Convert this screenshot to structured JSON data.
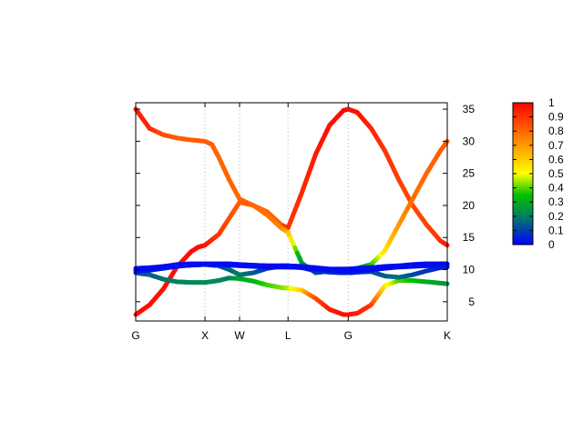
{
  "chart_data": {
    "type": "line",
    "title": "",
    "xlabel": "",
    "ylabel": "",
    "x_ticks": [
      {
        "label": "G",
        "pos": 0
      },
      {
        "label": "X",
        "pos": 1
      },
      {
        "label": "W",
        "pos": 1.5
      },
      {
        "label": "L",
        "pos": 2.2
      },
      {
        "label": "G",
        "pos": 3.07
      },
      {
        "label": "K",
        "pos": 4.5
      }
    ],
    "xlim": [
      0,
      4.5
    ],
    "ylim": [
      2,
      36
    ],
    "y_ticks": [
      5,
      10,
      15,
      20,
      25,
      30,
      35
    ],
    "y_axis_side": "right",
    "grid": "vertical dotted at high-symmetry points",
    "colorbar": {
      "min": 0,
      "max": 1,
      "ticks": [
        "0",
        "0.1",
        "0.2",
        "0.3",
        "0.4",
        "0.5",
        "0.6",
        "0.7",
        "0.8",
        "0.9",
        "1"
      ],
      "stops": [
        "#0000ff",
        "#008060",
        "#00c000",
        "#ffff00",
        "#ff8000",
        "#ff0000"
      ]
    },
    "series": [
      {
        "x": [
          0,
          0.2,
          0.4,
          0.6,
          0.8,
          1.0,
          1.1,
          1.2,
          1.35,
          1.5,
          1.7,
          1.9,
          2.1,
          2.2,
          2.4,
          2.6,
          2.8,
          3.0,
          3.07,
          3.2,
          3.4,
          3.6,
          3.8,
          4.0,
          4.2,
          4.4,
          4.5
        ],
        "y": [
          35,
          32,
          31,
          30.5,
          30.2,
          30,
          29.5,
          27.5,
          24,
          21,
          20,
          19,
          17,
          16.5,
          22,
          28,
          32.5,
          34.8,
          35,
          34.5,
          32,
          28.5,
          24,
          20,
          17,
          14.5,
          13.8
        ],
        "w": [
          0.95,
          0.93,
          0.85,
          0.82,
          0.82,
          0.82,
          0.82,
          0.8,
          0.8,
          0.8,
          0.8,
          0.8,
          0.82,
          0.9,
          0.92,
          0.95,
          0.97,
          0.98,
          0.98,
          0.97,
          0.93,
          0.9,
          0.88,
          0.86,
          0.87,
          0.9,
          0.95
        ]
      },
      {
        "x": [
          0,
          0.2,
          0.4,
          0.6,
          0.8,
          0.9,
          1.0,
          1.2,
          1.35,
          1.5,
          1.7,
          1.9,
          2.1,
          2.2,
          2.4,
          2.6,
          2.8,
          3.0,
          3.07,
          3.2,
          3.4,
          3.6,
          3.8,
          4.0,
          4.2,
          4.4,
          4.5
        ],
        "y": [
          3,
          4.5,
          7,
          10.5,
          12.8,
          13.5,
          13.8,
          15.5,
          18,
          20.5,
          20,
          18.5,
          16.5,
          15.8,
          11,
          9.5,
          9.8,
          10,
          10,
          10.2,
          10.8,
          13,
          17,
          21,
          25,
          28.5,
          30
        ],
        "w": [
          0.97,
          0.97,
          0.97,
          0.97,
          0.97,
          0.97,
          0.97,
          0.9,
          0.85,
          0.82,
          0.8,
          0.78,
          0.75,
          0.65,
          0.25,
          0.12,
          0.08,
          0.06,
          0.06,
          0.1,
          0.35,
          0.55,
          0.7,
          0.78,
          0.8,
          0.82,
          0.82
        ]
      },
      {
        "x": [
          0,
          0.2,
          0.4,
          0.6,
          0.8,
          1.0,
          1.2,
          1.35,
          1.5,
          1.7,
          1.9,
          2.1,
          2.2,
          2.4,
          2.6,
          2.8,
          3.0,
          3.07,
          3.2,
          3.4,
          3.6,
          3.8,
          4.0,
          4.2,
          4.4,
          4.5
        ],
        "y": [
          9.5,
          9.2,
          8.5,
          8.1,
          8,
          8,
          8.3,
          8.7,
          8.6,
          8.2,
          7.6,
          7.2,
          7.1,
          6.8,
          5.5,
          3.8,
          3,
          3,
          3.2,
          4.5,
          7.5,
          8.3,
          8.3,
          8.1,
          7.9,
          7.8
        ],
        "w": [
          0.12,
          0.15,
          0.18,
          0.2,
          0.22,
          0.22,
          0.22,
          0.2,
          0.28,
          0.32,
          0.38,
          0.42,
          0.45,
          0.6,
          0.85,
          0.95,
          0.97,
          0.97,
          0.95,
          0.9,
          0.55,
          0.4,
          0.35,
          0.3,
          0.28,
          0.25
        ]
      },
      {
        "x": [
          0,
          0.2,
          0.4,
          0.6,
          0.8,
          1.0,
          1.2,
          1.35,
          1.5,
          1.7,
          1.9,
          2.1,
          2.2,
          2.4,
          2.6,
          2.8,
          3.0,
          3.07,
          3.2,
          3.4,
          3.6,
          3.8,
          4.0,
          4.2,
          4.4,
          4.5
        ],
        "y": [
          9.7,
          9.9,
          10.2,
          10.5,
          10.7,
          10.8,
          10.6,
          10,
          9.2,
          9.5,
          10.2,
          10.5,
          10.5,
          10.3,
          9.8,
          9.6,
          9.5,
          9.5,
          9.6,
          9.7,
          9,
          8.8,
          9.2,
          9.8,
          10.3,
          10.4
        ],
        "w": [
          0.03,
          0.03,
          0.04,
          0.05,
          0.05,
          0.05,
          0.08,
          0.15,
          0.2,
          0.15,
          0.08,
          0.05,
          0.05,
          0.06,
          0.08,
          0.08,
          0.05,
          0.05,
          0.06,
          0.08,
          0.15,
          0.18,
          0.12,
          0.08,
          0.05,
          0.05
        ]
      },
      {
        "x": [
          0,
          0.2,
          0.4,
          0.6,
          0.8,
          1.0,
          1.2,
          1.35,
          1.5,
          1.7,
          1.9,
          2.1,
          2.2,
          2.4,
          2.6,
          2.8,
          3.0,
          3.07,
          3.2,
          3.4,
          3.6,
          3.8,
          4.0,
          4.2,
          4.4,
          4.5
        ],
        "y": [
          10,
          10.1,
          10.4,
          10.6,
          10.7,
          10.8,
          10.8,
          10.7,
          10.6,
          10.5,
          10.4,
          10.4,
          10.4,
          10.3,
          10.1,
          9.9,
          9.8,
          9.8,
          9.9,
          10,
          10.2,
          10.4,
          10.5,
          10.6,
          10.7,
          10.8
        ],
        "w": [
          0.02,
          0.02,
          0.02,
          0.02,
          0.02,
          0.02,
          0.02,
          0.02,
          0.02,
          0.02,
          0.02,
          0.02,
          0.02,
          0.02,
          0.02,
          0.02,
          0.02,
          0.02,
          0.02,
          0.02,
          0.02,
          0.02,
          0.02,
          0.02,
          0.02,
          0.02
        ]
      },
      {
        "x": [
          0,
          0.2,
          0.4,
          0.6,
          0.8,
          1.0,
          1.2,
          1.35,
          1.5,
          1.7,
          1.9,
          2.1,
          2.2,
          2.4,
          2.6,
          2.8,
          3.0,
          3.07,
          3.2,
          3.4,
          3.6,
          3.8,
          4.0,
          4.2,
          4.4,
          4.5
        ],
        "y": [
          10.2,
          10.3,
          10.5,
          10.8,
          10.9,
          10.9,
          10.9,
          10.9,
          10.8,
          10.7,
          10.6,
          10.6,
          10.6,
          10.5,
          10.3,
          10.1,
          10.1,
          10.1,
          10.2,
          10.3,
          10.5,
          10.6,
          10.8,
          10.9,
          10.9,
          10.9
        ],
        "w": [
          0.02,
          0.02,
          0.02,
          0.02,
          0.02,
          0.02,
          0.02,
          0.02,
          0.02,
          0.02,
          0.02,
          0.02,
          0.02,
          0.02,
          0.02,
          0.02,
          0.02,
          0.02,
          0.02,
          0.02,
          0.02,
          0.02,
          0.02,
          0.02,
          0.02,
          0.02
        ]
      }
    ]
  }
}
